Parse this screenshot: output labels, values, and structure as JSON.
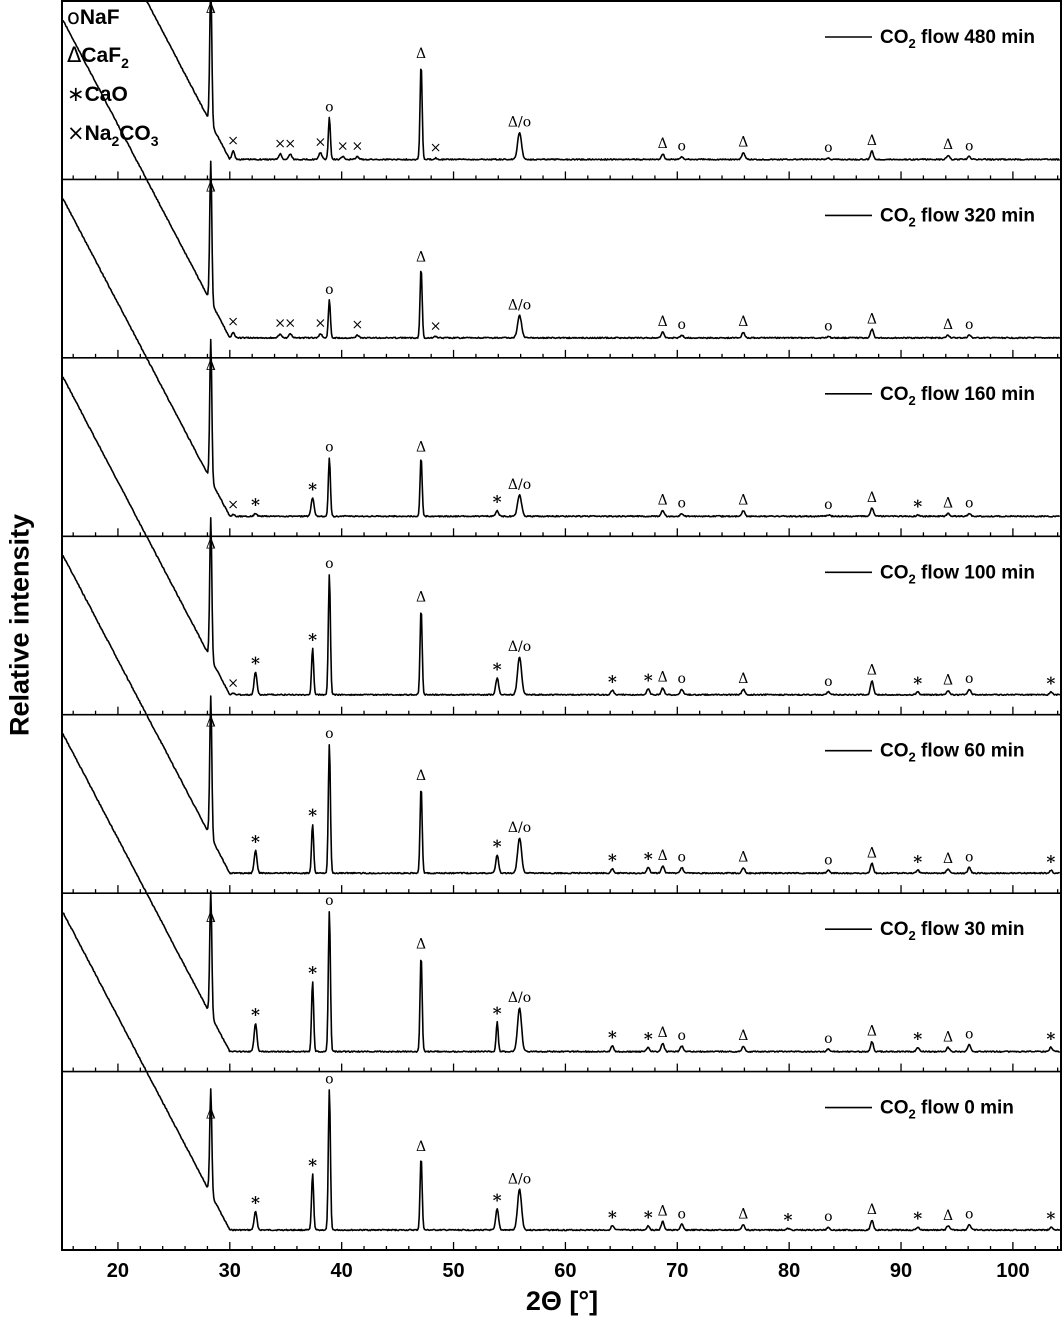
{
  "chart_data": {
    "type": "line",
    "title": "",
    "xlabel": "2Θ [°]",
    "ylabel": "Relative intensity",
    "xlim": [
      15,
      104.3
    ],
    "xticks_major": [
      20,
      30,
      40,
      50,
      60,
      70,
      80,
      90,
      100
    ],
    "xtick_minor_step": 2,
    "grid": false,
    "stacked_panels": true,
    "legend_phases": [
      {
        "symbol": "o",
        "label": "NaF"
      },
      {
        "symbol": "Δ",
        "label": "CaF",
        "sub": "2"
      },
      {
        "symbol": "∗",
        "label": "CaO"
      },
      {
        "symbol": "×",
        "label": "Na",
        "sub": "2",
        "label2": "CO",
        "sub2": "3"
      }
    ],
    "series": [
      {
        "name": "CO2 flow 480 min",
        "legend_prefix": "CO",
        "legend_sub": "2",
        "legend_suffix": " flow 480 min",
        "peaks": [
          {
            "x": 28.3,
            "h": 1.0,
            "label": "Δ"
          },
          {
            "x": 30.3,
            "h": 0.06,
            "label": "×"
          },
          {
            "x": 34.5,
            "h": 0.04,
            "label": "×"
          },
          {
            "x": 35.4,
            "h": 0.04,
            "label": "×"
          },
          {
            "x": 38.1,
            "h": 0.05,
            "label": "×"
          },
          {
            "x": 38.9,
            "h": 0.3,
            "label": "o"
          },
          {
            "x": 40.1,
            "h": 0.02,
            "label": "×"
          },
          {
            "x": 41.4,
            "h": 0.02,
            "label": "×"
          },
          {
            "x": 47.1,
            "h": 0.68,
            "label": "Δ"
          },
          {
            "x": 48.4,
            "h": 0.01,
            "label": "×"
          },
          {
            "x": 55.9,
            "h": 0.19,
            "label": "Δ/o"
          },
          {
            "x": 68.7,
            "h": 0.04,
            "label": "Δ"
          },
          {
            "x": 70.4,
            "h": 0.02,
            "label": "o"
          },
          {
            "x": 75.9,
            "h": 0.05,
            "label": "Δ"
          },
          {
            "x": 83.5,
            "h": 0.01,
            "label": "o"
          },
          {
            "x": 87.4,
            "h": 0.06,
            "label": "Δ"
          },
          {
            "x": 94.2,
            "h": 0.03,
            "label": "Δ"
          },
          {
            "x": 96.1,
            "h": 0.02,
            "label": "o"
          }
        ]
      },
      {
        "name": "CO2 flow 320 min",
        "legend_prefix": "CO",
        "legend_sub": "2",
        "legend_suffix": " flow 320 min",
        "peaks": [
          {
            "x": 28.3,
            "h": 1.0,
            "label": "Δ"
          },
          {
            "x": 30.3,
            "h": 0.04,
            "label": "×"
          },
          {
            "x": 34.5,
            "h": 0.03,
            "label": "×"
          },
          {
            "x": 35.4,
            "h": 0.03,
            "label": "×"
          },
          {
            "x": 38.1,
            "h": 0.03,
            "label": "×"
          },
          {
            "x": 38.9,
            "h": 0.27,
            "label": "o"
          },
          {
            "x": 41.4,
            "h": 0.02,
            "label": "×"
          },
          {
            "x": 47.1,
            "h": 0.5,
            "label": "Δ"
          },
          {
            "x": 48.4,
            "h": 0.01,
            "label": "×"
          },
          {
            "x": 55.9,
            "h": 0.16,
            "label": "Δ/o"
          },
          {
            "x": 68.7,
            "h": 0.04,
            "label": "Δ"
          },
          {
            "x": 70.4,
            "h": 0.02,
            "label": "o"
          },
          {
            "x": 75.9,
            "h": 0.04,
            "label": "Δ"
          },
          {
            "x": 83.5,
            "h": 0.01,
            "label": "o"
          },
          {
            "x": 87.4,
            "h": 0.06,
            "label": "Δ"
          },
          {
            "x": 94.2,
            "h": 0.02,
            "label": "Δ"
          },
          {
            "x": 96.1,
            "h": 0.02,
            "label": "o"
          }
        ]
      },
      {
        "name": "CO2 flow 160 min",
        "legend_prefix": "CO",
        "legend_sub": "2",
        "legend_suffix": " flow 160 min",
        "peaks": [
          {
            "x": 28.3,
            "h": 1.0,
            "label": "Δ"
          },
          {
            "x": 30.3,
            "h": 0.01,
            "label": "×"
          },
          {
            "x": 32.3,
            "h": 0.02,
            "label": "∗"
          },
          {
            "x": 37.4,
            "h": 0.13,
            "label": "∗"
          },
          {
            "x": 38.9,
            "h": 0.42,
            "label": "o"
          },
          {
            "x": 47.1,
            "h": 0.42,
            "label": "Δ"
          },
          {
            "x": 53.9,
            "h": 0.04,
            "label": "∗"
          },
          {
            "x": 55.9,
            "h": 0.15,
            "label": "Δ/o"
          },
          {
            "x": 68.7,
            "h": 0.04,
            "label": "Δ"
          },
          {
            "x": 70.4,
            "h": 0.02,
            "label": "o"
          },
          {
            "x": 75.9,
            "h": 0.04,
            "label": "Δ"
          },
          {
            "x": 83.5,
            "h": 0.01,
            "label": "o"
          },
          {
            "x": 87.4,
            "h": 0.06,
            "label": "Δ"
          },
          {
            "x": 91.5,
            "h": 0.01,
            "label": "∗"
          },
          {
            "x": 94.2,
            "h": 0.02,
            "label": "Δ"
          },
          {
            "x": 96.1,
            "h": 0.02,
            "label": "o"
          }
        ]
      },
      {
        "name": "CO2 flow 100 min",
        "legend_prefix": "CO",
        "legend_sub": "2",
        "legend_suffix": " flow 100 min",
        "peaks": [
          {
            "x": 28.3,
            "h": 1.0,
            "label": "Δ"
          },
          {
            "x": 30.3,
            "h": 0.01,
            "label": "×"
          },
          {
            "x": 32.3,
            "h": 0.16,
            "label": "∗"
          },
          {
            "x": 37.4,
            "h": 0.33,
            "label": "∗"
          },
          {
            "x": 38.9,
            "h": 0.86,
            "label": "o"
          },
          {
            "x": 47.1,
            "h": 0.62,
            "label": "Δ"
          },
          {
            "x": 53.9,
            "h": 0.12,
            "label": "∗"
          },
          {
            "x": 55.9,
            "h": 0.27,
            "label": "Δ/o"
          },
          {
            "x": 64.2,
            "h": 0.03,
            "label": "∗"
          },
          {
            "x": 67.4,
            "h": 0.04,
            "label": "∗"
          },
          {
            "x": 68.7,
            "h": 0.05,
            "label": "Δ"
          },
          {
            "x": 70.4,
            "h": 0.04,
            "label": "o"
          },
          {
            "x": 75.9,
            "h": 0.04,
            "label": "Δ"
          },
          {
            "x": 83.5,
            "h": 0.02,
            "label": "o"
          },
          {
            "x": 87.4,
            "h": 0.1,
            "label": "Δ"
          },
          {
            "x": 91.5,
            "h": 0.02,
            "label": "∗"
          },
          {
            "x": 94.2,
            "h": 0.03,
            "label": "Δ"
          },
          {
            "x": 96.1,
            "h": 0.04,
            "label": "o"
          },
          {
            "x": 103.4,
            "h": 0.02,
            "label": "∗"
          }
        ]
      },
      {
        "name": "CO2 flow 60 min",
        "legend_prefix": "CO",
        "legend_sub": "2",
        "legend_suffix": " flow 60 min",
        "peaks": [
          {
            "x": 28.3,
            "h": 1.0,
            "label": "Δ"
          },
          {
            "x": 32.3,
            "h": 0.16,
            "label": "∗"
          },
          {
            "x": 37.4,
            "h": 0.35,
            "label": "∗"
          },
          {
            "x": 38.9,
            "h": 0.92,
            "label": "o"
          },
          {
            "x": 47.1,
            "h": 0.62,
            "label": "Δ"
          },
          {
            "x": 53.9,
            "h": 0.13,
            "label": "∗"
          },
          {
            "x": 55.9,
            "h": 0.25,
            "label": "Δ/o"
          },
          {
            "x": 64.2,
            "h": 0.03,
            "label": "∗"
          },
          {
            "x": 67.4,
            "h": 0.04,
            "label": "∗"
          },
          {
            "x": 68.7,
            "h": 0.05,
            "label": "Δ"
          },
          {
            "x": 70.4,
            "h": 0.04,
            "label": "o"
          },
          {
            "x": 75.9,
            "h": 0.04,
            "label": "Δ"
          },
          {
            "x": 83.5,
            "h": 0.02,
            "label": "o"
          },
          {
            "x": 87.4,
            "h": 0.07,
            "label": "Δ"
          },
          {
            "x": 91.5,
            "h": 0.02,
            "label": "∗"
          },
          {
            "x": 94.2,
            "h": 0.03,
            "label": "Δ"
          },
          {
            "x": 96.1,
            "h": 0.04,
            "label": "o"
          },
          {
            "x": 103.4,
            "h": 0.02,
            "label": "∗"
          }
        ]
      },
      {
        "name": "CO2 flow 30 min",
        "legend_prefix": "CO",
        "legend_sub": "2",
        "legend_suffix": " flow 30 min",
        "peaks": [
          {
            "x": 28.3,
            "h": 0.88,
            "label": "Δ"
          },
          {
            "x": 32.3,
            "h": 0.2,
            "label": "∗"
          },
          {
            "x": 37.4,
            "h": 0.5,
            "label": "∗"
          },
          {
            "x": 38.9,
            "h": 1.0,
            "label": "o"
          },
          {
            "x": 47.1,
            "h": 0.69,
            "label": "Δ"
          },
          {
            "x": 53.9,
            "h": 0.21,
            "label": "∗"
          },
          {
            "x": 55.9,
            "h": 0.31,
            "label": "Δ/o"
          },
          {
            "x": 64.2,
            "h": 0.04,
            "label": "∗"
          },
          {
            "x": 67.4,
            "h": 0.03,
            "label": "∗"
          },
          {
            "x": 68.7,
            "h": 0.06,
            "label": "Δ"
          },
          {
            "x": 70.4,
            "h": 0.04,
            "label": "o"
          },
          {
            "x": 75.9,
            "h": 0.04,
            "label": "Δ"
          },
          {
            "x": 83.5,
            "h": 0.02,
            "label": "o"
          },
          {
            "x": 87.4,
            "h": 0.07,
            "label": "Δ"
          },
          {
            "x": 91.5,
            "h": 0.03,
            "label": "∗"
          },
          {
            "x": 94.2,
            "h": 0.03,
            "label": "Δ"
          },
          {
            "x": 96.1,
            "h": 0.05,
            "label": "o"
          },
          {
            "x": 103.4,
            "h": 0.03,
            "label": "∗"
          }
        ]
      },
      {
        "name": "CO2 flow 0 min",
        "legend_prefix": "CO",
        "legend_sub": "2",
        "legend_suffix": " flow 0 min",
        "peaks": [
          {
            "x": 28.3,
            "h": 0.75,
            "label": "Δ"
          },
          {
            "x": 32.3,
            "h": 0.13,
            "label": "∗"
          },
          {
            "x": 37.4,
            "h": 0.4,
            "label": "∗"
          },
          {
            "x": 38.9,
            "h": 1.0,
            "label": "o"
          },
          {
            "x": 47.1,
            "h": 0.52,
            "label": "Δ"
          },
          {
            "x": 53.9,
            "h": 0.15,
            "label": "∗"
          },
          {
            "x": 55.9,
            "h": 0.29,
            "label": "Δ/o"
          },
          {
            "x": 64.2,
            "h": 0.03,
            "label": "∗"
          },
          {
            "x": 67.4,
            "h": 0.03,
            "label": "∗"
          },
          {
            "x": 68.7,
            "h": 0.06,
            "label": "Δ"
          },
          {
            "x": 70.4,
            "h": 0.04,
            "label": "o"
          },
          {
            "x": 75.9,
            "h": 0.04,
            "label": "Δ"
          },
          {
            "x": 79.9,
            "h": 0.01,
            "label": "∗"
          },
          {
            "x": 83.5,
            "h": 0.02,
            "label": "o"
          },
          {
            "x": 87.4,
            "h": 0.07,
            "label": "Δ"
          },
          {
            "x": 91.5,
            "h": 0.02,
            "label": "∗"
          },
          {
            "x": 94.2,
            "h": 0.03,
            "label": "Δ"
          },
          {
            "x": 96.1,
            "h": 0.04,
            "label": "o"
          },
          {
            "x": 103.4,
            "h": 0.02,
            "label": "∗"
          }
        ]
      }
    ]
  },
  "axes": {
    "xlabel": "2Θ [°]",
    "ylabel": "Relative intensity"
  }
}
